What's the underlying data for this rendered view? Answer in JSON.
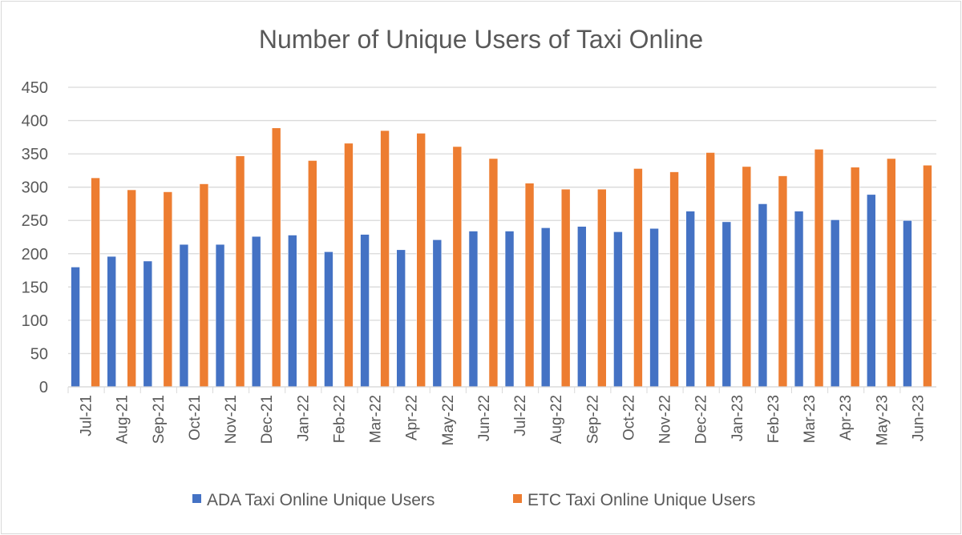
{
  "chart_data": {
    "type": "bar",
    "title": "Number of Unique Users of Taxi Online",
    "xlabel": "",
    "ylabel": "",
    "ylim": [
      0,
      450
    ],
    "yticks": [
      0,
      50,
      100,
      150,
      200,
      250,
      300,
      350,
      400,
      450
    ],
    "grid": true,
    "legend_position": "bottom",
    "categories": [
      "Jul-21",
      "Aug-21",
      "Sep-21",
      "Oct-21",
      "Nov-21",
      "Dec-21",
      "Jan-22",
      "Feb-22",
      "Mar-22",
      "Apr-22",
      "May-22",
      "Jun-22",
      "Jul-22",
      "Aug-22",
      "Sep-22",
      "Oct-22",
      "Nov-22",
      "Dec-22",
      "Jan-23",
      "Feb-23",
      "Mar-23",
      "Apr-23",
      "May-23",
      "Jun-23"
    ],
    "series": [
      {
        "name": "ADA Taxi Online Unique Users",
        "color": "#4472c4",
        "values": [
          180,
          196,
          189,
          214,
          214,
          226,
          228,
          203,
          229,
          206,
          221,
          234,
          234,
          239,
          241,
          233,
          238,
          264,
          248,
          275,
          264,
          251,
          289,
          250
        ]
      },
      {
        "name": "ETC Taxi Online Unique Users",
        "color": "#ed7d31",
        "values": [
          314,
          296,
          293,
          305,
          347,
          389,
          340,
          366,
          385,
          381,
          361,
          343,
          306,
          297,
          297,
          328,
          323,
          352,
          331,
          317,
          357,
          330,
          343,
          333
        ]
      }
    ]
  }
}
